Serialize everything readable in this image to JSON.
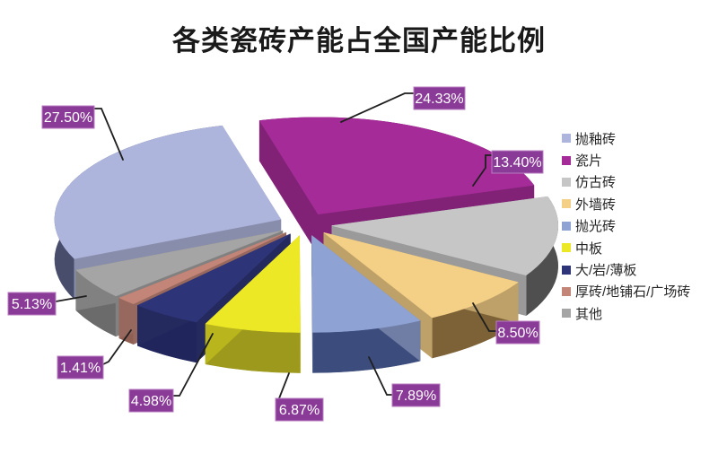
{
  "title": "各类瓷砖产能占全国产能比例",
  "chart_data": {
    "type": "pie",
    "view": "3d-exploded-pie",
    "title": "各类瓷砖产能占全国产能比例",
    "legend_position": "right",
    "rotation_deg": 246,
    "total": 100.01,
    "series": [
      {
        "name": "抛釉砖",
        "value": 27.5,
        "label": "27.50%",
        "color": "#AEB5DD",
        "side_color": "#474D6B"
      },
      {
        "name": "瓷片",
        "value": 24.33,
        "label": "24.33%",
        "color": "#A52C98",
        "side_color": "#6F1A67"
      },
      {
        "name": "仿古砖",
        "value": 13.4,
        "label": "13.40%",
        "color": "#C6C6C6",
        "side_color": "#4F4F4F"
      },
      {
        "name": "外墙砖",
        "value": 8.5,
        "label": "8.50%",
        "color": "#F4CF86",
        "side_color": "#7C6236"
      },
      {
        "name": "抛光砖",
        "value": 7.89,
        "label": "7.89%",
        "color": "#8FA2D4",
        "side_color": "#3C4C7C"
      },
      {
        "name": "中板",
        "value": 6.87,
        "label": "6.87%",
        "color": "#EDE825",
        "side_color": "#9C991C"
      },
      {
        "name": "大/岩/薄板",
        "value": 4.98,
        "label": "4.98%",
        "color": "#2E3478",
        "side_color": "#20255C"
      },
      {
        "name": "厚砖/地铺石/广场砖",
        "value": 1.41,
        "label": "1.41%",
        "color": "#C28578",
        "side_color": "#8F5F53"
      },
      {
        "name": "其他",
        "value": 5.13,
        "label": "5.13%",
        "color": "#A5A5A5",
        "side_color": "#6B6B6B"
      }
    ],
    "label_style": {
      "bg": "#8A3B97",
      "border": "#B87CC0",
      "text_color": "#FFFFFF",
      "leader_color": "#1F1F1F"
    },
    "background": "#FFFFFF"
  }
}
